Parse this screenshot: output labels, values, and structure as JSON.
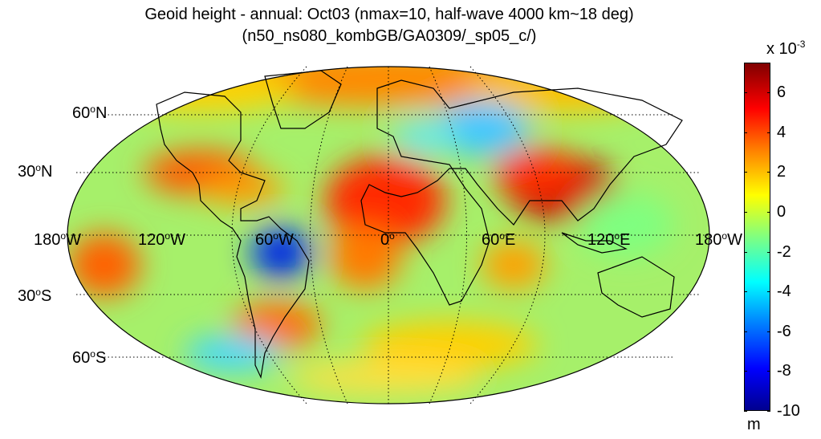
{
  "title_line1": "Geoid height - annual: Oct03 (nmax=10, half-wave 4000 km~18 deg)",
  "title_line2": "(n50_ns080_kombGB/GA0309/_sp05_c/)",
  "projection": "robinson",
  "graticule": {
    "style": "dotted",
    "color": "#000000"
  },
  "lat_labels": [
    {
      "value": "60",
      "hemi": "N"
    },
    {
      "value": "30",
      "hemi": "N"
    },
    {
      "value": "30",
      "hemi": "S"
    },
    {
      "value": "60",
      "hemi": "S"
    }
  ],
  "lon_labels": [
    {
      "value": "180",
      "hemi": "W"
    },
    {
      "value": "120",
      "hemi": "W"
    },
    {
      "value": "60",
      "hemi": "W"
    },
    {
      "value": "0",
      "hemi": ""
    },
    {
      "value": "60",
      "hemi": "E"
    },
    {
      "value": "120",
      "hemi": "E"
    },
    {
      "value": "180",
      "hemi": "W"
    }
  ],
  "colorbar": {
    "colormap": "jet",
    "min": -10,
    "max": 7.5,
    "ticks": [
      "6",
      "4",
      "2",
      "0",
      "-2",
      "-4",
      "-6",
      "-8",
      "-10"
    ],
    "exponent_base": "x 10",
    "exponent": "-3",
    "unit": "m"
  }
}
